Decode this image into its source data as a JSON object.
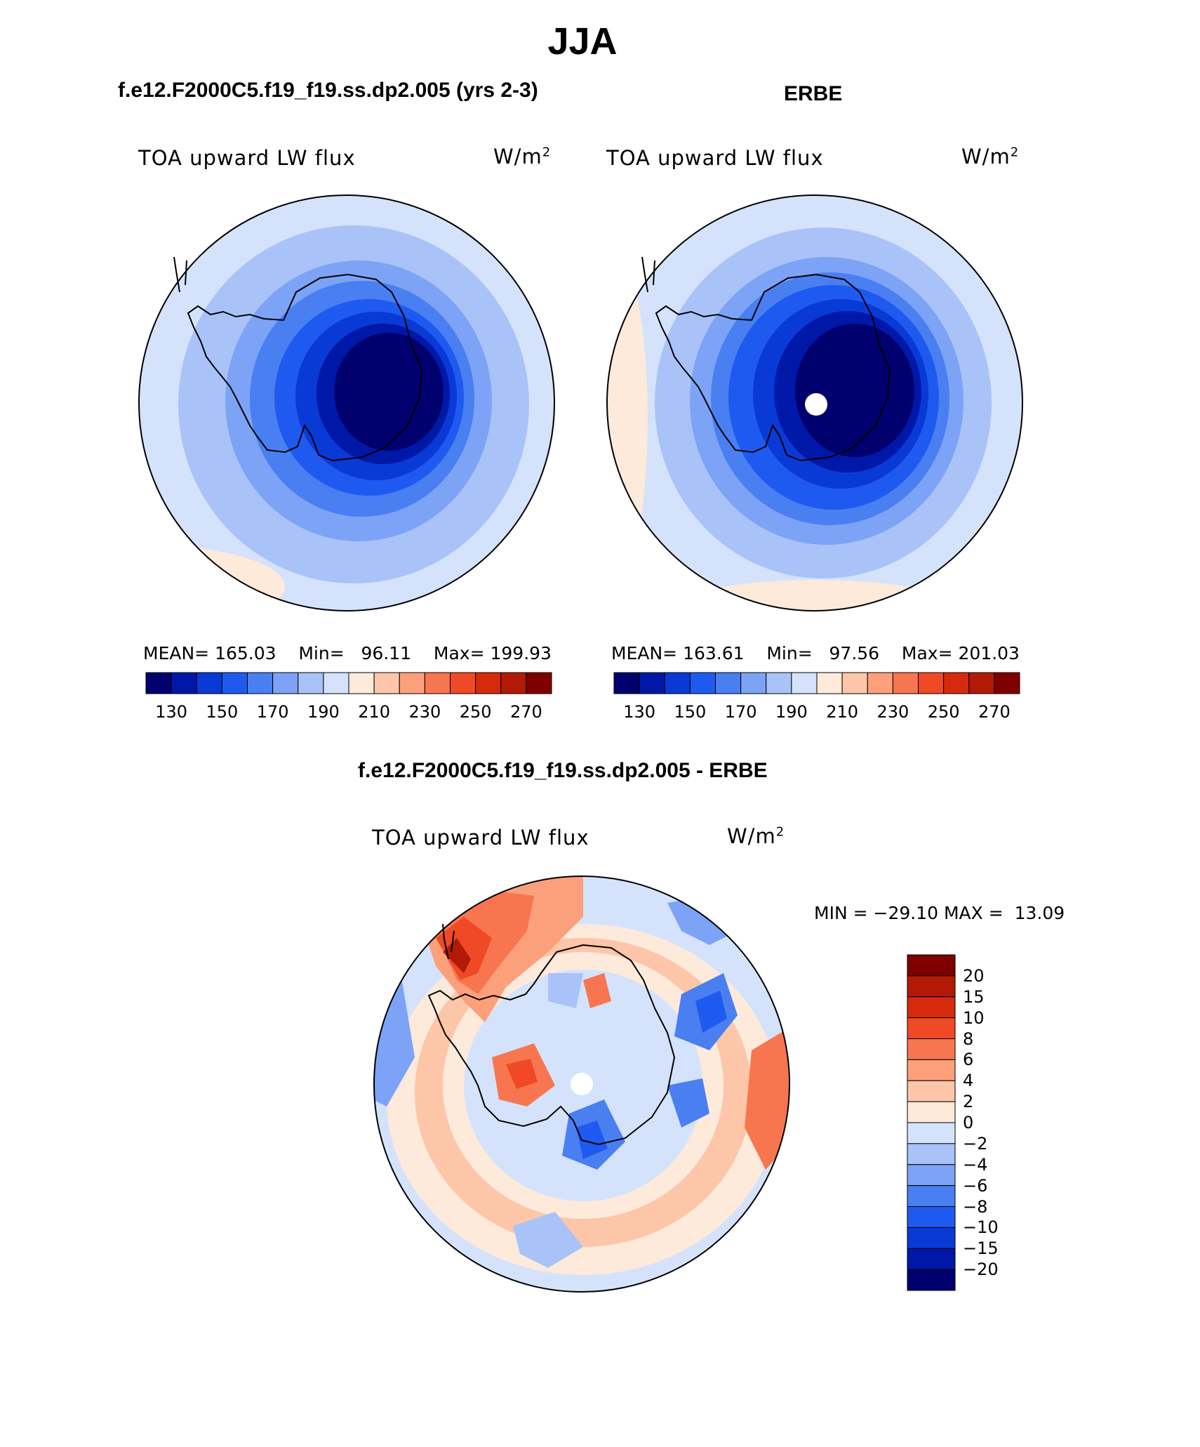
{
  "title": "JJA",
  "colors": {
    "abs_scale": [
      "#00006e",
      "#0018a8",
      "#0a3ad6",
      "#1f5af0",
      "#4a7ff2",
      "#7da3f6",
      "#a9c3f8",
      "#d4e3fb",
      "#fdeadb",
      "#fdc6a8",
      "#fca07c",
      "#f7764f",
      "#ef4a25",
      "#d52b0c",
      "#b21a05",
      "#800000"
    ],
    "diff_scale": [
      "#00006e",
      "#0018a8",
      "#0a3ad6",
      "#1f5af0",
      "#4a7ff2",
      "#7da3f6",
      "#a9c3f8",
      "#d4e3fb",
      "#fdeadb",
      "#fdc6a8",
      "#fca07c",
      "#f7764f",
      "#ef4a25",
      "#d52b0c",
      "#b21a05",
      "#800000"
    ]
  },
  "chart_data": [
    {
      "type": "heatmap",
      "projection": "south-polar-stereographic",
      "case_title": "f.e12.F2000C5.f19_f19.ss.dp2.005 (yrs 2-3)",
      "left_label": "TOA upward LW flux",
      "units_base": "W/m",
      "units_exp": "2",
      "stats": {
        "mean_label": "MEAN=",
        "mean": "165.03",
        "min_label": "Min=",
        "min": "96.11",
        "max_label": "Max=",
        "max": "199.93"
      },
      "contour_levels": [
        130,
        140,
        150,
        160,
        170,
        180,
        190,
        200,
        210,
        220,
        230,
        240,
        250,
        260,
        270
      ],
      "colorbar_labels": [
        "130",
        "150",
        "170",
        "190",
        "210",
        "230",
        "250",
        "270"
      ]
    },
    {
      "type": "heatmap",
      "projection": "south-polar-stereographic",
      "case_title": "ERBE",
      "left_label": "TOA upward LW flux",
      "units_base": "W/m",
      "units_exp": "2",
      "stats": {
        "mean_label": "MEAN=",
        "mean": "163.61",
        "min_label": "Min=",
        "min": "97.56",
        "max_label": "Max=",
        "max": "201.03"
      },
      "contour_levels": [
        130,
        140,
        150,
        160,
        170,
        180,
        190,
        200,
        210,
        220,
        230,
        240,
        250,
        260,
        270
      ],
      "colorbar_labels": [
        "130",
        "150",
        "170",
        "190",
        "210",
        "230",
        "250",
        "270"
      ]
    },
    {
      "type": "heatmap",
      "projection": "south-polar-stereographic",
      "case_title": "f.e12.F2000C5.f19_f19.ss.dp2.005 - ERBE",
      "left_label": "TOA upward LW flux",
      "units_base": "W/m",
      "units_exp": "2",
      "stats": {
        "min_label": "MIN =",
        "min": "−29.10",
        "max_label": "MAX =",
        "max": "13.09"
      },
      "contour_levels": [
        -20,
        -15,
        -10,
        -8,
        -6,
        -4,
        -2,
        0,
        2,
        4,
        6,
        8,
        10,
        15,
        20
      ],
      "colorbar_labels": [
        "20",
        "15",
        "10",
        "8",
        "6",
        "4",
        "2",
        "0",
        "−2",
        "−4",
        "−6",
        "−8",
        "−10",
        "−15",
        "−20"
      ]
    }
  ]
}
